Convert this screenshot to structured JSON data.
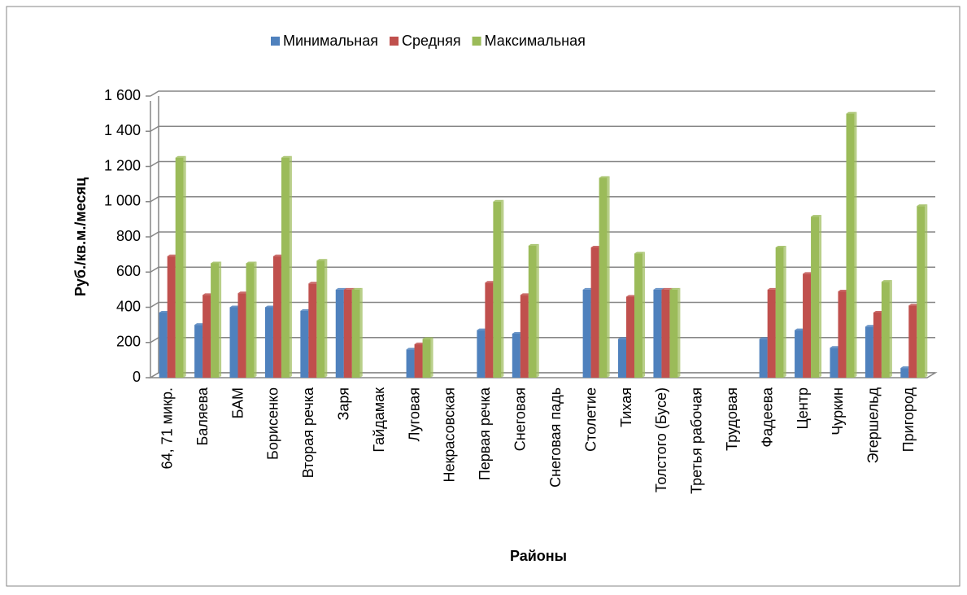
{
  "chart_data": {
    "type": "bar",
    "x_label": "Районы",
    "y_label": "Руб./кв.м./месяц",
    "categories": [
      "64, 71 микр.",
      "Баляева",
      "БАМ",
      "Борисенко",
      "Вторая речка",
      "Заря",
      "Гайдамак",
      "Луговая",
      "Некрасовская",
      "Первая речка",
      "Снеговая",
      "Снеговая падь",
      "Столетие",
      "Тихая",
      "Толстого (Бусе)",
      "Третья рабочая",
      "Трудовая",
      "Фадеева",
      "Центр",
      "Чуркин",
      "Эгершельд",
      "Пригород"
    ],
    "series": [
      {
        "name": "Минимальная",
        "color": "#4f81bd",
        "values": [
          370,
          300,
          400,
          400,
          380,
          500,
          null,
          160,
          null,
          270,
          250,
          null,
          500,
          220,
          500,
          null,
          null,
          220,
          270,
          170,
          290,
          55
        ]
      },
      {
        "name": "Средняя",
        "color": "#c0504d",
        "values": [
          690,
          470,
          480,
          690,
          535,
          500,
          null,
          190,
          null,
          540,
          470,
          null,
          740,
          460,
          500,
          null,
          null,
          500,
          590,
          490,
          370,
          410
        ]
      },
      {
        "name": "Максимальная",
        "color": "#9bbb59",
        "values": [
          1250,
          650,
          650,
          1250,
          665,
          500,
          null,
          220,
          null,
          1000,
          750,
          null,
          1135,
          705,
          500,
          null,
          null,
          740,
          915,
          1500,
          545,
          975
        ]
      }
    ],
    "ylim": [
      0,
      1600
    ],
    "yticks": [
      0,
      200,
      400,
      600,
      800,
      {
        "value": 1000,
        "label": "1 000"
      },
      {
        "value": 1200,
        "label": "1 200"
      },
      {
        "value": 1400,
        "label": "1 400"
      },
      {
        "value": 1600,
        "label": "1 600"
      }
    ],
    "grid": true,
    "legend": "top"
  }
}
